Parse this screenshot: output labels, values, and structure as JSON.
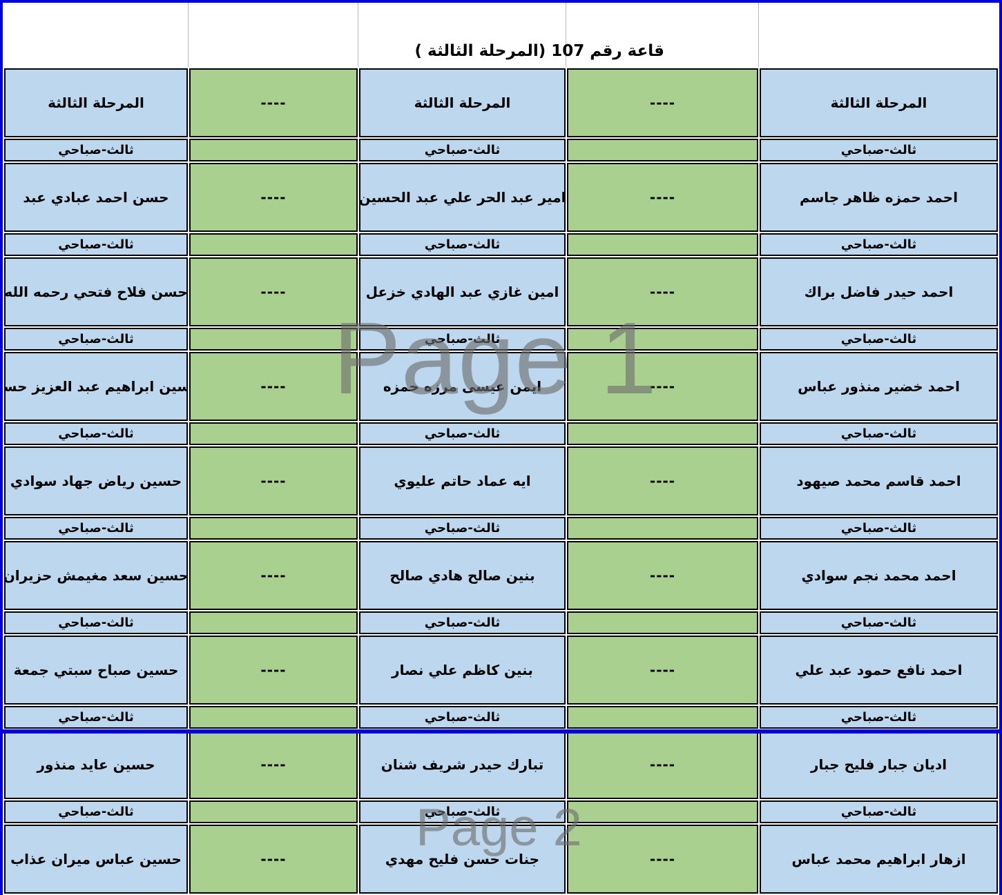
{
  "title": "قاعة رقم 107 (المرحلة الثالثة )",
  "header_row": {
    "stage_label": "المرحلة الثالثة",
    "dash": "----"
  },
  "session_label": "ثالث-صباحي",
  "dash": "----",
  "watermarks": {
    "page1": "Page 1",
    "page2": "Page 2"
  },
  "colors": {
    "cell_blue": "#BDD7EE",
    "cell_green": "#A9D08E",
    "page_break_blue": "#0101DF",
    "watermark_gray": "#6e6e6e",
    "border_black": "#000000"
  },
  "rows": [
    {
      "left": "حسن احمد عبادي عبد",
      "middle": "امير عبد الحر علي عبد الحسين",
      "right": "احمد حمزه ظاهر جاسم"
    },
    {
      "left": "حسن فلاح فتحي رحمه الله",
      "middle": "امين غازي عبد الهادي خزعل",
      "right": "احمد حيدر فاضل براك"
    },
    {
      "left": "حسين ابراهيم عبد العزيز حسن",
      "middle": "ايمن عيسى مرزه حمزه",
      "right": "احمد خضير منذور عباس"
    },
    {
      "left": "حسين رياض جهاد سوادي",
      "middle": "ايه عماد حاتم عليوي",
      "right": "احمد قاسم محمد صيهود"
    },
    {
      "left": "حسين سعد مغيمش حزيران",
      "middle": "بنين صالح هادي صالح",
      "right": "احمد محمد نجم سوادي"
    },
    {
      "left": "حسين صباح سبتي جمعة",
      "middle": "بنين كاظم علي نصار",
      "right": "احمد نافع حمود عبد علي"
    },
    {
      "left": "حسين عايد منذور",
      "middle": "تبارك حيدر شريف شنان",
      "right": "اديان جبار فليح جبار"
    },
    {
      "left": "حسين عباس ميران عذاب",
      "middle": "جنات حسن فليح مهدي",
      "right": "ازهار ابراهيم محمد عباس"
    }
  ]
}
